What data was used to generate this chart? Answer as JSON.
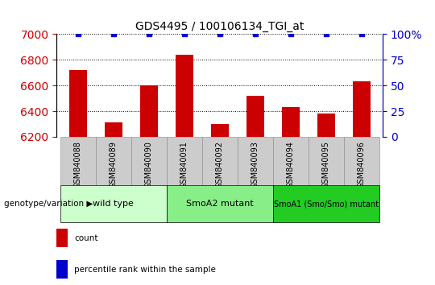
{
  "title": "GDS4495 / 100106134_TGI_at",
  "samples": [
    "GSM840088",
    "GSM840089",
    "GSM840090",
    "GSM840091",
    "GSM840092",
    "GSM840093",
    "GSM840094",
    "GSM840095",
    "GSM840096"
  ],
  "counts": [
    6720,
    6310,
    6600,
    6840,
    6300,
    6520,
    6430,
    6380,
    6630
  ],
  "percentile_ranks": [
    100,
    100,
    100,
    100,
    100,
    100,
    100,
    100,
    100
  ],
  "ylim_left": [
    6200,
    7000
  ],
  "ylim_right": [
    0,
    100
  ],
  "yticks_left": [
    6200,
    6400,
    6600,
    6800,
    7000
  ],
  "yticks_right": [
    0,
    25,
    50,
    75,
    100
  ],
  "groups": [
    {
      "label": "wild type",
      "indices": [
        0,
        1,
        2
      ],
      "color": "#ccffcc"
    },
    {
      "label": "SmoA2 mutant",
      "indices": [
        3,
        4,
        5
      ],
      "color": "#88ee88"
    },
    {
      "label": "SmoA1 (Smo/Smo) mutant",
      "indices": [
        6,
        7,
        8
      ],
      "color": "#22cc22"
    }
  ],
  "bar_color": "#cc0000",
  "percentile_color": "#0000cc",
  "percentile_marker": "s",
  "percentile_size": 5,
  "bar_width": 0.5,
  "grid_color": "#000000",
  "grid_linestyle": "dotted",
  "left_tick_color": "#cc0000",
  "right_tick_color": "#0000cc",
  "group_label": "genotype/variation",
  "legend_count_label": "count",
  "legend_percentile_label": "percentile rank within the sample",
  "tick_area_bg": "#cccccc",
  "n_samples": 9
}
